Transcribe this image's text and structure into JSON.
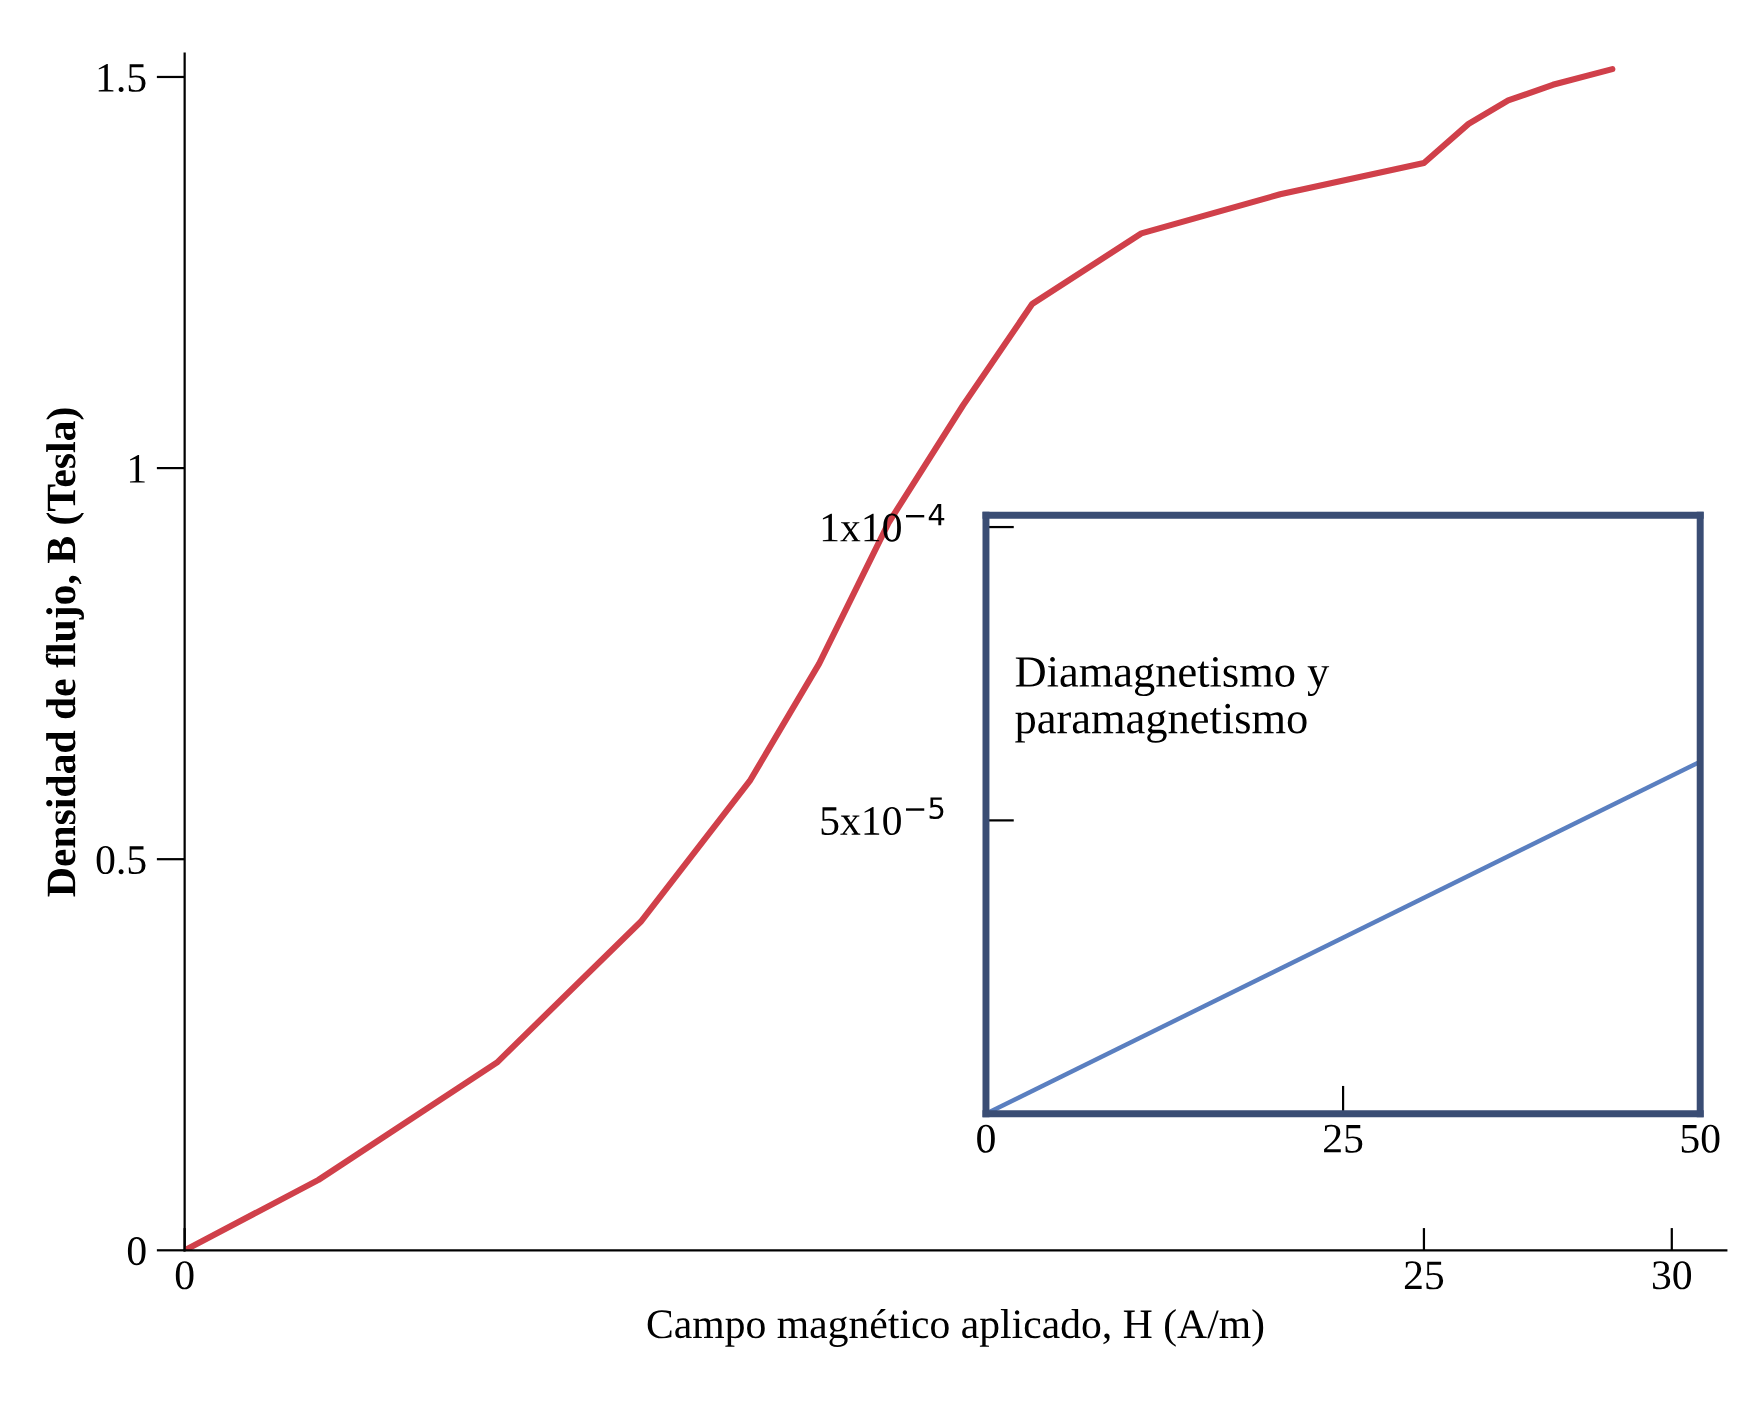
{
  "chart_data": [
    {
      "type": "line",
      "xlabel": "Campo magnético aplicado, H (A/m)",
      "ylabel": "Densidad de flujo, B (Tesla)",
      "x": [
        0,
        2.7,
        6.3,
        9.2,
        11.4,
        12.8,
        14.2,
        15.7,
        17.1,
        19.3,
        22.1,
        25,
        25.9,
        26.7,
        27.6,
        28.8
      ],
      "series": [
        {
          "color": "#d0404a",
          "values": [
            0,
            0.09,
            0.24,
            0.42,
            0.6,
            0.75,
            0.93,
            1.08,
            1.21,
            1.3,
            1.35,
            1.39,
            1.44,
            1.47,
            1.49,
            1.51
          ]
        }
      ],
      "xlim": [
        0,
        31.1
      ],
      "ylim": [
        0,
        1.53
      ],
      "xticks": [
        0,
        25,
        30
      ],
      "yticks": [
        0,
        0.5,
        1,
        1.5
      ],
      "grid": false,
      "legend": false
    },
    {
      "type": "line",
      "annotations": [
        "Diamagnetismo y\nparamagnetismo"
      ],
      "x": [
        0,
        50
      ],
      "series": [
        {
          "color": "#5a7fc0",
          "values": [
            0,
            6e-05
          ]
        }
      ],
      "xlim": [
        0,
        50
      ],
      "ylim": [
        0,
        0.000102
      ],
      "xticks": [
        0,
        25,
        50
      ],
      "yticks": [
        {
          "value": 5e-05,
          "label": "5x10$^{−5}$"
        },
        {
          "value": 0.0001,
          "label": "1x10$^{−4}$"
        }
      ],
      "grid": false,
      "legend": false
    }
  ]
}
